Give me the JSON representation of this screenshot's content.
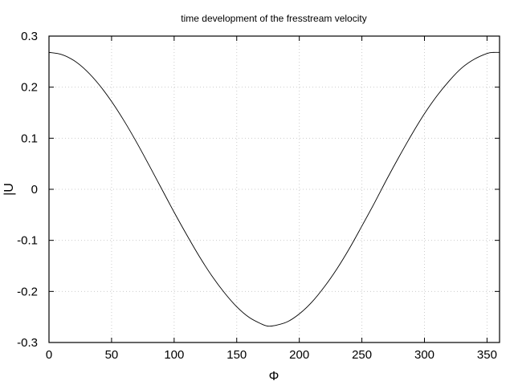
{
  "chart_data": {
    "type": "line",
    "title": "time development of the fresstream velocity",
    "xlabel": "Φ",
    "ylabel": "|U",
    "xlim": [
      0,
      360
    ],
    "ylim": [
      -0.3,
      0.3
    ],
    "xticks": [
      0,
      50,
      100,
      150,
      200,
      250,
      300,
      350
    ],
    "yticks": [
      0.3,
      0.2,
      0.1,
      0,
      -0.1,
      -0.2,
      -0.3
    ],
    "xtick_labels": [
      "0",
      "50",
      "100",
      "150",
      "200",
      "250",
      "300",
      "350"
    ],
    "ytick_labels": [
      "0.3",
      "0.2",
      "0.1",
      "0",
      "-0.1",
      "-0.2",
      "-0.3"
    ],
    "grid": true,
    "line_color": "#000000",
    "grid_color": "#cccccc",
    "series": [
      {
        "x": [
          0,
          10,
          20,
          30,
          40,
          50,
          60,
          70,
          80,
          90,
          100,
          110,
          120,
          130,
          140,
          150,
          160,
          170,
          175,
          180,
          190,
          200,
          210,
          220,
          230,
          240,
          250,
          260,
          270,
          280,
          290,
          300,
          310,
          320,
          330,
          340,
          350,
          355,
          360
        ],
        "values": [
          0.268,
          0.264,
          0.252,
          0.232,
          0.205,
          0.172,
          0.134,
          0.092,
          0.047,
          0.001,
          -0.045,
          -0.089,
          -0.131,
          -0.169,
          -0.202,
          -0.23,
          -0.251,
          -0.264,
          -0.268,
          -0.267,
          -0.26,
          -0.244,
          -0.221,
          -0.191,
          -0.156,
          -0.116,
          -0.072,
          -0.027,
          0.02,
          0.065,
          0.108,
          0.148,
          0.183,
          0.213,
          0.238,
          0.255,
          0.266,
          0.268,
          0.268
        ]
      }
    ]
  }
}
